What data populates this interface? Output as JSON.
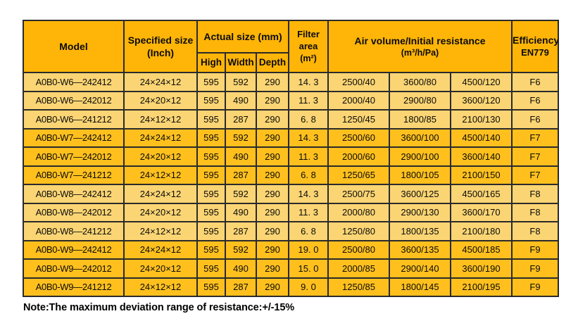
{
  "table": {
    "header": {
      "model": "Model",
      "specified_size_line1": "Specified size",
      "specified_size_line2": "(Inch)",
      "actual_size": "Actual size (mm)",
      "sub_high": "High",
      "sub_width": "Width",
      "sub_depth": "Depth",
      "filter_area_line1": "Filter",
      "filter_area_line2": "area",
      "filter_area_line3": "(m²)",
      "air_line1": "Air volume/Initial resistance",
      "air_line2": "(m³/h/Pa)",
      "efficiency_line1": "Efficiency",
      "efficiency_line2": "EN779"
    },
    "rows": [
      {
        "model": "A0B0-W6—242412",
        "spec": "24×24×12",
        "high": "595",
        "width": "592",
        "depth": "290",
        "area": "14. 3",
        "air1": "2500/40",
        "air2": "3600/80",
        "air3": "4500/120",
        "eff": "F6",
        "shade": "light"
      },
      {
        "model": "A0B0-W6—242012",
        "spec": "24×20×12",
        "high": "595",
        "width": "490",
        "depth": "290",
        "area": "11. 3",
        "air1": "2000/40",
        "air2": "2900/80",
        "air3": "3600/120",
        "eff": "F6",
        "shade": "light"
      },
      {
        "model": "A0B0-W6—241212",
        "spec": "24×12×12",
        "high": "595",
        "width": "287",
        "depth": "290",
        "area": "6. 8",
        "air1": "1250/45",
        "air2": "1800/85",
        "air3": "2100/130",
        "eff": "F6",
        "shade": "light"
      },
      {
        "model": "A0B0-W7—242412",
        "spec": "24×24×12",
        "high": "595",
        "width": "592",
        "depth": "290",
        "area": "14. 3",
        "air1": "2500/60",
        "air2": "3600/100",
        "air3": "4500/140",
        "eff": "F7",
        "shade": "dark"
      },
      {
        "model": "A0B0-W7—242012",
        "spec": "24×20×12",
        "high": "595",
        "width": "490",
        "depth": "290",
        "area": "11. 3",
        "air1": "2000/60",
        "air2": "2900/100",
        "air3": "3600/140",
        "eff": "F7",
        "shade": "dark"
      },
      {
        "model": "A0B0-W7—241212",
        "spec": "24×12×12",
        "high": "595",
        "width": "287",
        "depth": "290",
        "area": "6. 8",
        "air1": "1250/65",
        "air2": "1800/105",
        "air3": "2100/150",
        "eff": "F7",
        "shade": "dark"
      },
      {
        "model": "A0B0-W8—242412",
        "spec": "24×24×12",
        "high": "595",
        "width": "592",
        "depth": "290",
        "area": "14. 3",
        "air1": "2500/75",
        "air2": "3600/125",
        "air3": "4500/165",
        "eff": "F8",
        "shade": "light"
      },
      {
        "model": "A0B0-W8—242012",
        "spec": "24×20×12",
        "high": "595",
        "width": "490",
        "depth": "290",
        "area": "11. 3",
        "air1": "2000/80",
        "air2": "2900/130",
        "air3": "3600/170",
        "eff": "F8",
        "shade": "light"
      },
      {
        "model": "A0B0-W8—241212",
        "spec": "24×12×12",
        "high": "595",
        "width": "287",
        "depth": "290",
        "area": "6. 8",
        "air1": "1250/80",
        "air2": "1800/135",
        "air3": "2100/180",
        "eff": "F8",
        "shade": "light"
      },
      {
        "model": "A0B0-W9—242412",
        "spec": "24×24×12",
        "high": "595",
        "width": "592",
        "depth": "290",
        "area": "19. 0",
        "air1": "2500/80",
        "air2": "3600/135",
        "air3": "4500/185",
        "eff": "F9",
        "shade": "dark"
      },
      {
        "model": "A0B0-W9—242012",
        "spec": "24×20×12",
        "high": "595",
        "width": "490",
        "depth": "290",
        "area": "15. 0",
        "air1": "2000/85",
        "air2": "2900/140",
        "air3": "3600/190",
        "eff": "F9",
        "shade": "dark"
      },
      {
        "model": "A0B0-W9—241212",
        "spec": "24×12×12",
        "high": "595",
        "width": "287",
        "depth": "290",
        "area": "9. 0",
        "air1": "1250/85",
        "air2": "1800/145",
        "air3": "2100/195",
        "eff": "F9",
        "shade": "dark"
      }
    ]
  },
  "note": "Note:The maximum deviation range of resistance:+/-15%",
  "colors": {
    "header_bg": "#ffb507",
    "row_light_bg": "#fbd574",
    "row_dark_bg": "#ffc01e",
    "border": "#2a2a2a",
    "text": "#0b0b0b"
  }
}
